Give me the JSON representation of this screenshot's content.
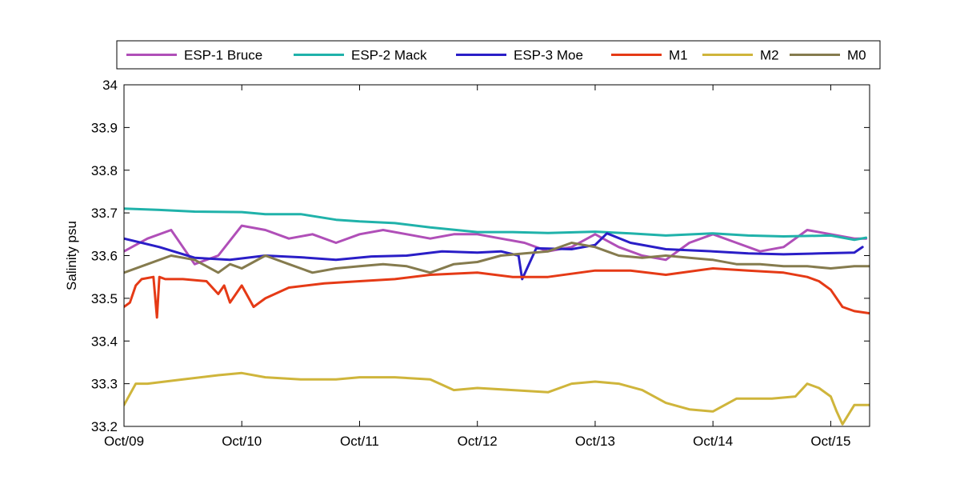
{
  "chart_data": {
    "type": "line",
    "title": "",
    "xlabel": "",
    "ylabel": "Salinity psu",
    "ylim": [
      33.2,
      34.0
    ],
    "xlim": [
      0,
      6.33
    ],
    "yticks": [
      33.2,
      33.3,
      33.4,
      33.5,
      33.6,
      33.7,
      33.8,
      33.9,
      34.0
    ],
    "ytick_labels": [
      "33.2",
      "33.3",
      "33.4",
      "33.5",
      "33.6",
      "33.7",
      "33.8",
      "33.9",
      "34"
    ],
    "xticks": [
      0,
      1,
      2,
      3,
      4,
      5,
      6
    ],
    "xtick_labels": [
      "Oct/09",
      "Oct/10",
      "Oct/11",
      "Oct/12",
      "Oct/13",
      "Oct/14",
      "Oct/15"
    ],
    "grid": false,
    "legend_position": "top",
    "series": [
      {
        "name": "ESP-1 Bruce",
        "color": "#b04fb8",
        "x": [
          0,
          0.2,
          0.4,
          0.45,
          0.6,
          0.8,
          1.0,
          1.2,
          1.4,
          1.6,
          1.8,
          2.0,
          2.2,
          2.4,
          2.6,
          2.8,
          3.0,
          3.2,
          3.4,
          3.6,
          3.8,
          4.0,
          4.2,
          4.4,
          4.6,
          4.8,
          5.0,
          5.2,
          5.4,
          5.6,
          5.8,
          6.0,
          6.2,
          6.3
        ],
        "y": [
          33.61,
          33.64,
          33.66,
          33.64,
          33.58,
          33.6,
          33.67,
          33.66,
          33.64,
          33.65,
          33.63,
          33.65,
          33.66,
          33.65,
          33.64,
          33.65,
          33.65,
          33.64,
          33.63,
          33.61,
          33.62,
          33.65,
          33.62,
          33.6,
          33.59,
          33.63,
          33.65,
          33.63,
          33.61,
          33.62,
          33.66,
          33.65,
          33.64,
          33.64
        ]
      },
      {
        "name": "ESP-2 Mack",
        "color": "#20b2aa",
        "x": [
          0,
          0.3,
          0.6,
          1.0,
          1.2,
          1.5,
          1.8,
          2.0,
          2.3,
          2.6,
          3.0,
          3.3,
          3.6,
          4.0,
          4.3,
          4.6,
          5.0,
          5.3,
          5.6,
          6.0,
          6.2,
          6.3
        ],
        "y": [
          33.71,
          33.707,
          33.703,
          33.702,
          33.697,
          33.697,
          33.684,
          33.68,
          33.676,
          33.666,
          33.655,
          33.655,
          33.653,
          33.656,
          33.652,
          33.647,
          33.652,
          33.647,
          33.645,
          33.647,
          33.637,
          33.642
        ]
      },
      {
        "name": "ESP-3 Moe",
        "color": "#2a1ec7",
        "x": [
          0,
          0.3,
          0.6,
          0.9,
          1.2,
          1.5,
          1.8,
          2.1,
          2.4,
          2.7,
          3.0,
          3.2,
          3.35,
          3.38,
          3.5,
          3.8,
          4.0,
          4.1,
          4.3,
          4.6,
          5.0,
          5.3,
          5.6,
          5.9,
          6.2,
          6.27
        ],
        "y": [
          33.64,
          33.62,
          33.595,
          33.59,
          33.6,
          33.596,
          33.59,
          33.598,
          33.6,
          33.61,
          33.607,
          33.61,
          33.6,
          33.545,
          33.617,
          33.615,
          33.625,
          33.652,
          33.63,
          33.615,
          33.61,
          33.605,
          33.603,
          33.605,
          33.607,
          33.62
        ]
      },
      {
        "name": "M1",
        "color": "#e53a16",
        "x": [
          0,
          0.05,
          0.1,
          0.15,
          0.25,
          0.28,
          0.3,
          0.35,
          0.5,
          0.7,
          0.8,
          0.85,
          0.9,
          1.0,
          1.1,
          1.2,
          1.4,
          1.7,
          2.0,
          2.3,
          2.6,
          3.0,
          3.3,
          3.6,
          4.0,
          4.3,
          4.6,
          5.0,
          5.3,
          5.6,
          5.8,
          5.9,
          6.0,
          6.1,
          6.2,
          6.33
        ],
        "y": [
          33.48,
          33.49,
          33.53,
          33.545,
          33.55,
          33.455,
          33.55,
          33.545,
          33.545,
          33.54,
          33.51,
          33.53,
          33.49,
          33.53,
          33.48,
          33.5,
          33.525,
          33.535,
          33.54,
          33.545,
          33.555,
          33.56,
          33.55,
          33.55,
          33.565,
          33.565,
          33.555,
          33.57,
          33.565,
          33.56,
          33.55,
          33.54,
          33.52,
          33.48,
          33.47,
          33.465
        ]
      },
      {
        "name": "M2",
        "color": "#cfb53b",
        "x": [
          0,
          0.1,
          0.2,
          0.5,
          0.8,
          1.0,
          1.2,
          1.5,
          1.8,
          2.0,
          2.3,
          2.6,
          2.8,
          3.0,
          3.3,
          3.6,
          3.8,
          4.0,
          4.2,
          4.4,
          4.6,
          4.8,
          5.0,
          5.2,
          5.5,
          5.7,
          5.8,
          5.9,
          6.0,
          6.05,
          6.1,
          6.2,
          6.33
        ],
        "y": [
          33.25,
          33.3,
          33.3,
          33.31,
          33.32,
          33.325,
          33.315,
          33.31,
          33.31,
          33.315,
          33.315,
          33.31,
          33.285,
          33.29,
          33.285,
          33.28,
          33.3,
          33.305,
          33.3,
          33.285,
          33.255,
          33.24,
          33.235,
          33.265,
          33.265,
          33.27,
          33.3,
          33.29,
          33.27,
          33.235,
          33.205,
          33.25,
          33.25
        ]
      },
      {
        "name": "M0",
        "color": "#857b4e",
        "x": [
          0,
          0.2,
          0.4,
          0.6,
          0.8,
          0.9,
          1.0,
          1.2,
          1.4,
          1.6,
          1.8,
          2.0,
          2.2,
          2.4,
          2.6,
          2.8,
          3.0,
          3.2,
          3.4,
          3.6,
          3.8,
          4.0,
          4.2,
          4.4,
          4.6,
          4.8,
          5.0,
          5.2,
          5.4,
          5.6,
          5.8,
          6.0,
          6.2,
          6.33
        ],
        "y": [
          33.56,
          33.58,
          33.6,
          33.59,
          33.56,
          33.58,
          33.57,
          33.6,
          33.58,
          33.56,
          33.57,
          33.575,
          33.58,
          33.575,
          33.56,
          33.58,
          33.585,
          33.6,
          33.605,
          33.61,
          33.63,
          33.62,
          33.6,
          33.595,
          33.6,
          33.595,
          33.59,
          33.58,
          33.58,
          33.575,
          33.575,
          33.57,
          33.575,
          33.575
        ]
      }
    ]
  }
}
